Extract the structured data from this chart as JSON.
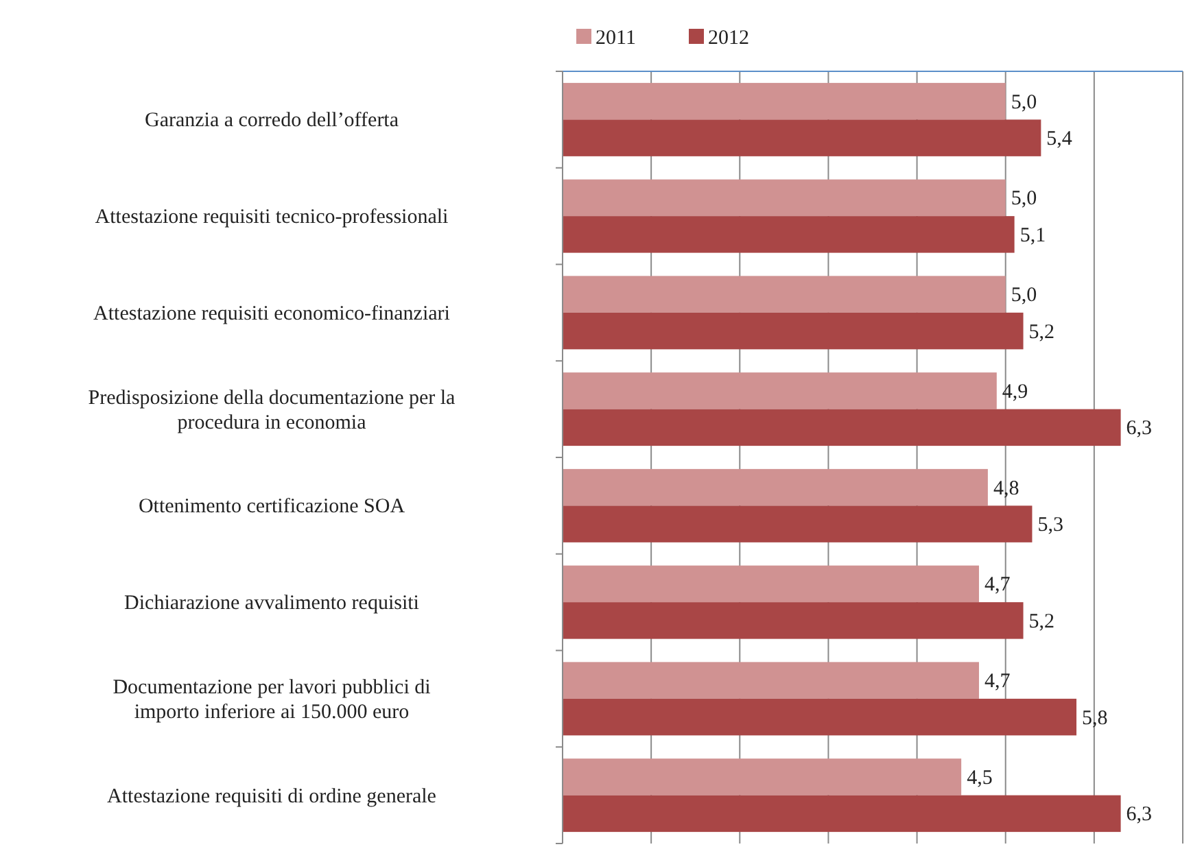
{
  "chart_data": {
    "type": "bar",
    "orientation": "horizontal",
    "categories": [
      "Garanzia a corredo dell’offerta",
      "Attestazione requisiti tecnico-professionali",
      "Attestazione requisiti economico-finanziari",
      "Predisposizione della documentazione per la procedura in economia",
      "Ottenimento certificazione SOA",
      "Dichiarazione avvalimento requisiti",
      "Documentazione per lavori pubblici di importo inferiore ai 150.000 euro",
      "Attestazione requisiti di ordine generale"
    ],
    "series": [
      {
        "name": "2011",
        "color": "#d09292",
        "values": [
          5.0,
          5.0,
          5.0,
          4.9,
          4.8,
          4.7,
          4.7,
          4.5
        ],
        "value_labels": [
          "5,0",
          "5,0",
          "5,0",
          "4,9",
          "4,8",
          "4,7",
          "4,7",
          "4,5"
        ]
      },
      {
        "name": "2012",
        "color": "#a94646",
        "values": [
          5.4,
          5.1,
          5.2,
          6.3,
          5.3,
          5.2,
          5.8,
          6.3
        ],
        "value_labels": [
          "5,4",
          "5,1",
          "5,2",
          "6,3",
          "5,3",
          "5,2",
          "5,8",
          "6,3"
        ]
      }
    ],
    "xlim": [
      0,
      7
    ],
    "xticks": [
      {
        "value": 0,
        "label": null
      },
      {
        "value": 1,
        "label": null
      },
      {
        "value": 2,
        "label": null
      },
      {
        "value": 3,
        "label": null
      },
      {
        "value": 4,
        "label": null
      },
      {
        "value": 5,
        "label": null
      },
      {
        "value": 6,
        "label": null
      },
      {
        "value": 7,
        "label": null
      }
    ],
    "tick_labels": "y",
    "grid": "x",
    "legend": "top"
  }
}
